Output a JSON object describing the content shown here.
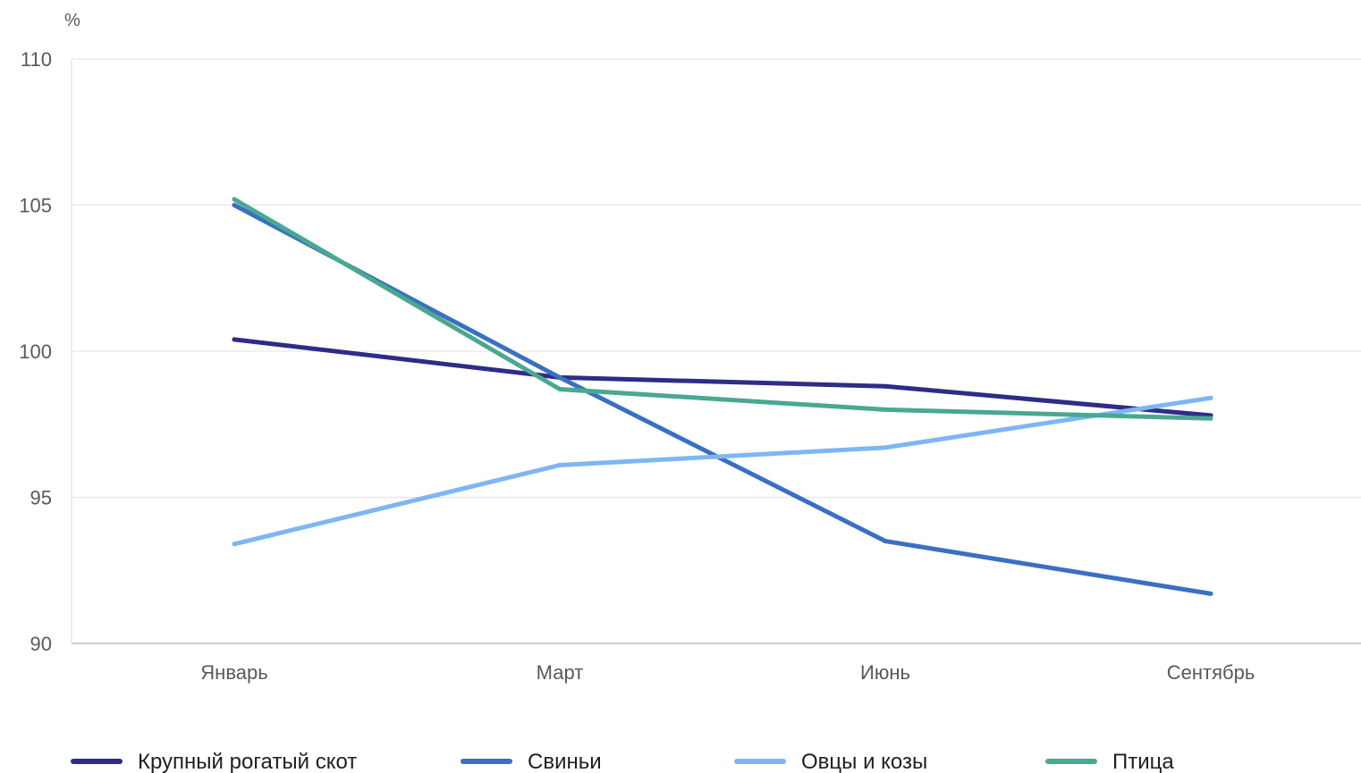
{
  "chart_data": {
    "type": "line",
    "unit": "%",
    "categories": [
      "Январь",
      "Март",
      "Июнь",
      "Сентябрь"
    ],
    "ylim": [
      90,
      110
    ],
    "yticks": [
      90,
      95,
      100,
      105,
      110
    ],
    "grid": true,
    "legend_position": "bottom",
    "series": [
      {
        "name": "Крупный рогатый скот",
        "color": "#2e2c86",
        "values": [
          100.4,
          99.1,
          98.8,
          97.8
        ]
      },
      {
        "name": "Свиньи",
        "color": "#3a70c1",
        "values": [
          105.0,
          99.1,
          93.5,
          91.7
        ]
      },
      {
        "name": "Овцы и козы",
        "color": "#7db6f5",
        "values": [
          93.4,
          96.1,
          96.7,
          98.4
        ]
      },
      {
        "name": "Птица",
        "color": "#4aa891",
        "values": [
          105.2,
          98.7,
          98.0,
          97.7
        ]
      }
    ]
  }
}
